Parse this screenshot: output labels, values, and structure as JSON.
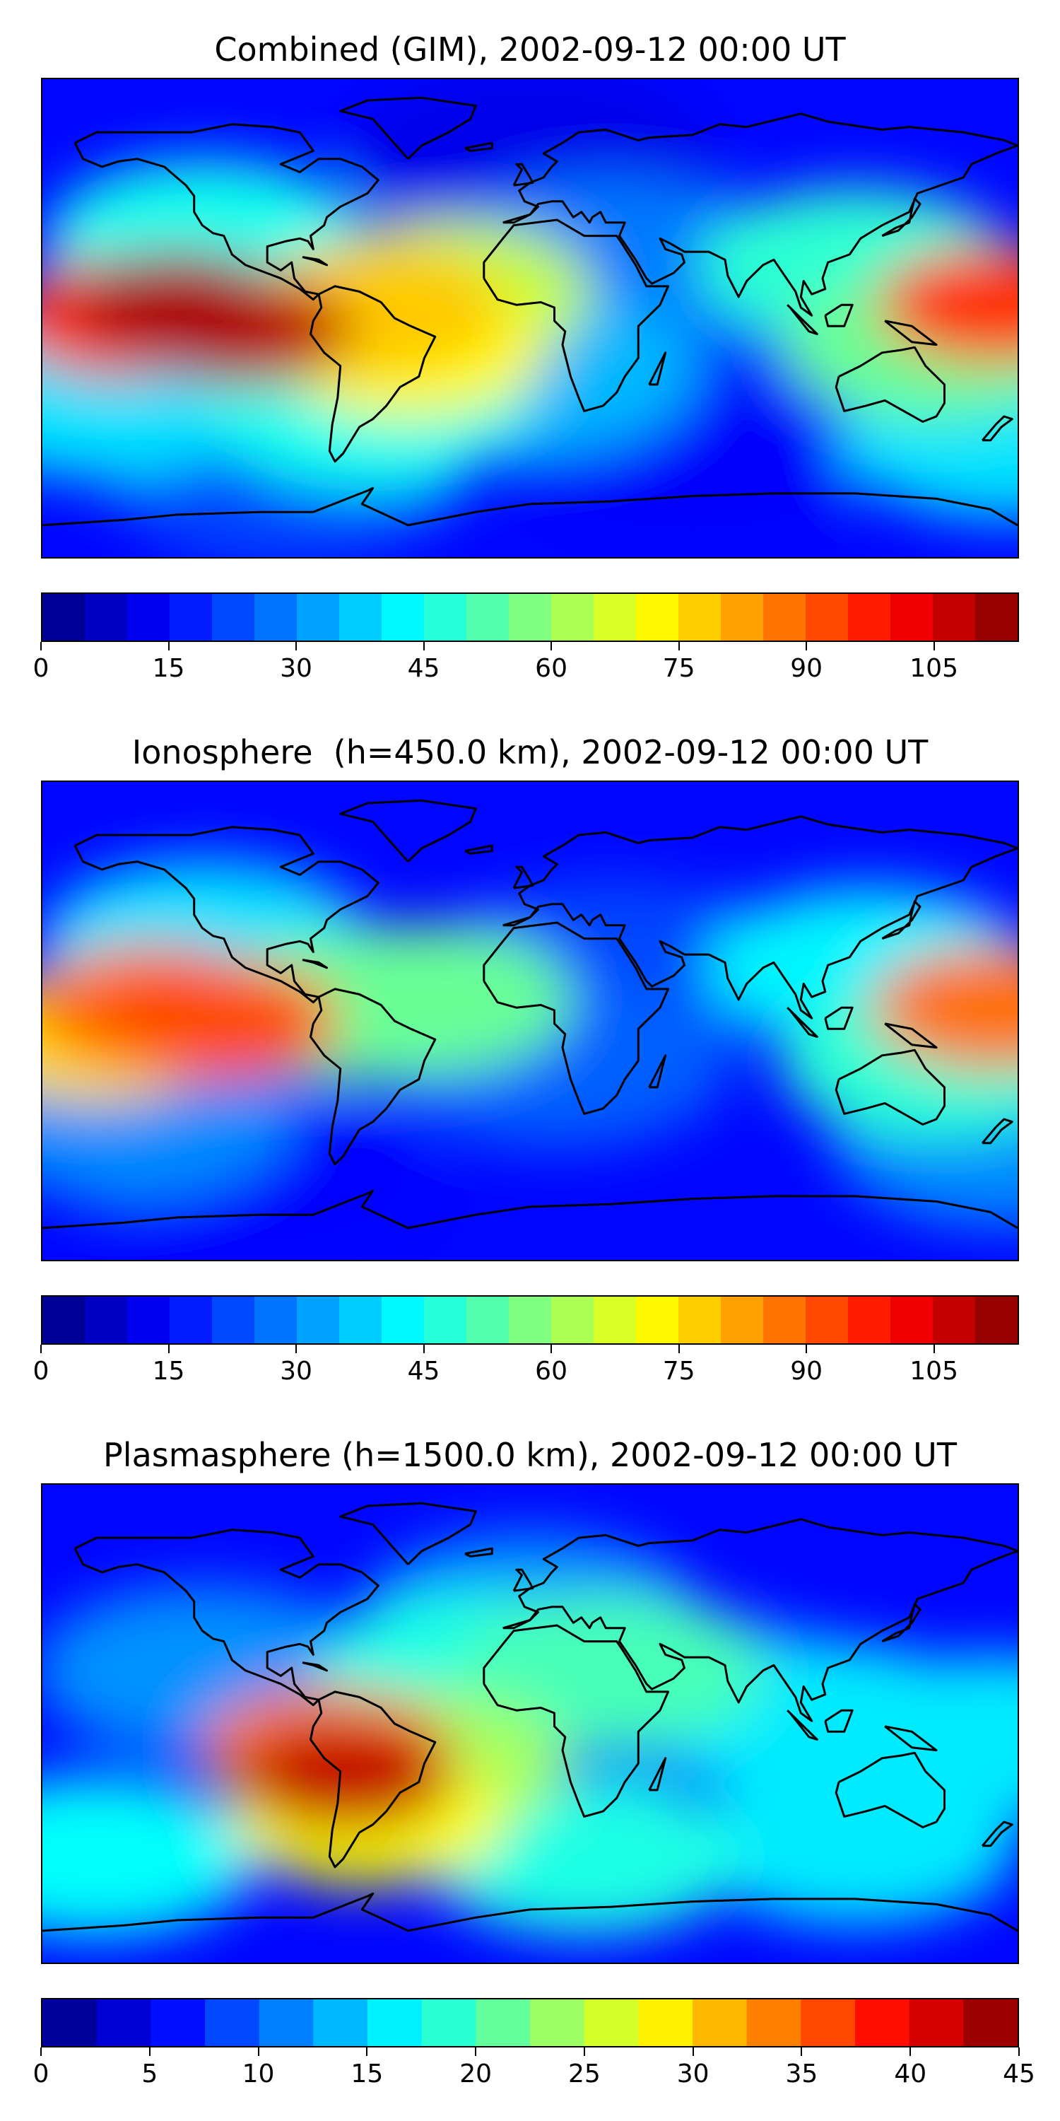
{
  "chart_data": [
    {
      "type": "heatmap",
      "title": "Combined (GIM), 2002-09-12 00:00 UT",
      "colormap": "jet",
      "colorbar": {
        "min": 0,
        "max": 115,
        "step": 5,
        "ticks": [
          0,
          15,
          30,
          45,
          60,
          75,
          90,
          105
        ]
      },
      "blobs": [
        {
          "lon": -130,
          "lat": 5,
          "value": 110
        },
        {
          "lon": -105,
          "lat": -5,
          "value": 108
        },
        {
          "lon": -150,
          "lat": 0,
          "value": 95
        },
        {
          "lon": -58,
          "lat": 3,
          "value": 78
        },
        {
          "lon": -45,
          "lat": -12,
          "value": 72
        },
        {
          "lon": -30,
          "lat": 10,
          "value": 65
        },
        {
          "lon": 172,
          "lat": 5,
          "value": 95
        },
        {
          "lon": 150,
          "lat": -10,
          "value": 55
        },
        {
          "lon": 120,
          "lat": 20,
          "value": 48
        },
        {
          "lon": -120,
          "lat": 30,
          "value": 45
        },
        {
          "lon": -160,
          "lat": -30,
          "value": 40
        },
        {
          "lon": -60,
          "lat": -35,
          "value": 45
        },
        {
          "lon": 0,
          "lat": -20,
          "value": 35
        },
        {
          "lon": 80,
          "lat": 10,
          "value": 20
        },
        {
          "lon": 30,
          "lat": 20,
          "value": 28
        },
        {
          "lon": 175,
          "lat": -45,
          "value": 40
        },
        {
          "lon": -90,
          "lat": -60,
          "value": 22
        },
        {
          "lon": 60,
          "lat": -50,
          "value": 14
        },
        {
          "lon": 0,
          "lat": 60,
          "value": 12
        }
      ]
    },
    {
      "type": "heatmap",
      "title": "Ionosphere  (h=450.0 km), 2002-09-12 00:00 UT",
      "colormap": "jet",
      "colorbar": {
        "min": 0,
        "max": 115,
        "step": 5,
        "ticks": [
          0,
          15,
          30,
          45,
          60,
          75,
          90,
          105
        ]
      },
      "blobs": [
        {
          "lon": -140,
          "lat": 5,
          "value": 88
        },
        {
          "lon": -115,
          "lat": 0,
          "value": 92
        },
        {
          "lon": -160,
          "lat": -5,
          "value": 75
        },
        {
          "lon": -65,
          "lat": 5,
          "value": 55
        },
        {
          "lon": -40,
          "lat": 8,
          "value": 55
        },
        {
          "lon": 172,
          "lat": 5,
          "value": 88
        },
        {
          "lon": 150,
          "lat": -15,
          "value": 48
        },
        {
          "lon": 125,
          "lat": 20,
          "value": 42
        },
        {
          "lon": -120,
          "lat": 30,
          "value": 40
        },
        {
          "lon": -150,
          "lat": -35,
          "value": 30
        },
        {
          "lon": 10,
          "lat": -15,
          "value": 25
        },
        {
          "lon": 30,
          "lat": 20,
          "value": 22
        },
        {
          "lon": 175,
          "lat": -45,
          "value": 30
        },
        {
          "lon": -100,
          "lat": -60,
          "value": 15
        }
      ]
    },
    {
      "type": "heatmap",
      "title": "Plasmasphere (h=1500.0 km), 2002-09-12 00:00 UT",
      "colormap": "jet",
      "colorbar": {
        "min": 0,
        "max": 45,
        "step": 2.5,
        "ticks": [
          0,
          5,
          10,
          15,
          20,
          25,
          30,
          35,
          40,
          45
        ]
      },
      "blobs": [
        {
          "lon": -68,
          "lat": -20,
          "value": 42
        },
        {
          "lon": -75,
          "lat": -10,
          "value": 34
        },
        {
          "lon": -60,
          "lat": -35,
          "value": 28
        },
        {
          "lon": -40,
          "lat": -15,
          "value": 24
        },
        {
          "lon": 30,
          "lat": 20,
          "value": 20
        },
        {
          "lon": -20,
          "lat": 20,
          "value": 18
        },
        {
          "lon": 110,
          "lat": 0,
          "value": 16
        },
        {
          "lon": 170,
          "lat": -5,
          "value": 16
        },
        {
          "lon": -160,
          "lat": -50,
          "value": 17
        },
        {
          "lon": 20,
          "lat": -50,
          "value": 18
        },
        {
          "lon": 120,
          "lat": -45,
          "value": 16
        },
        {
          "lon": -120,
          "lat": 20,
          "value": 12
        },
        {
          "lon": 60,
          "lat": 10,
          "value": 10
        },
        {
          "lon": 0,
          "lat": 40,
          "value": 12
        }
      ]
    }
  ]
}
